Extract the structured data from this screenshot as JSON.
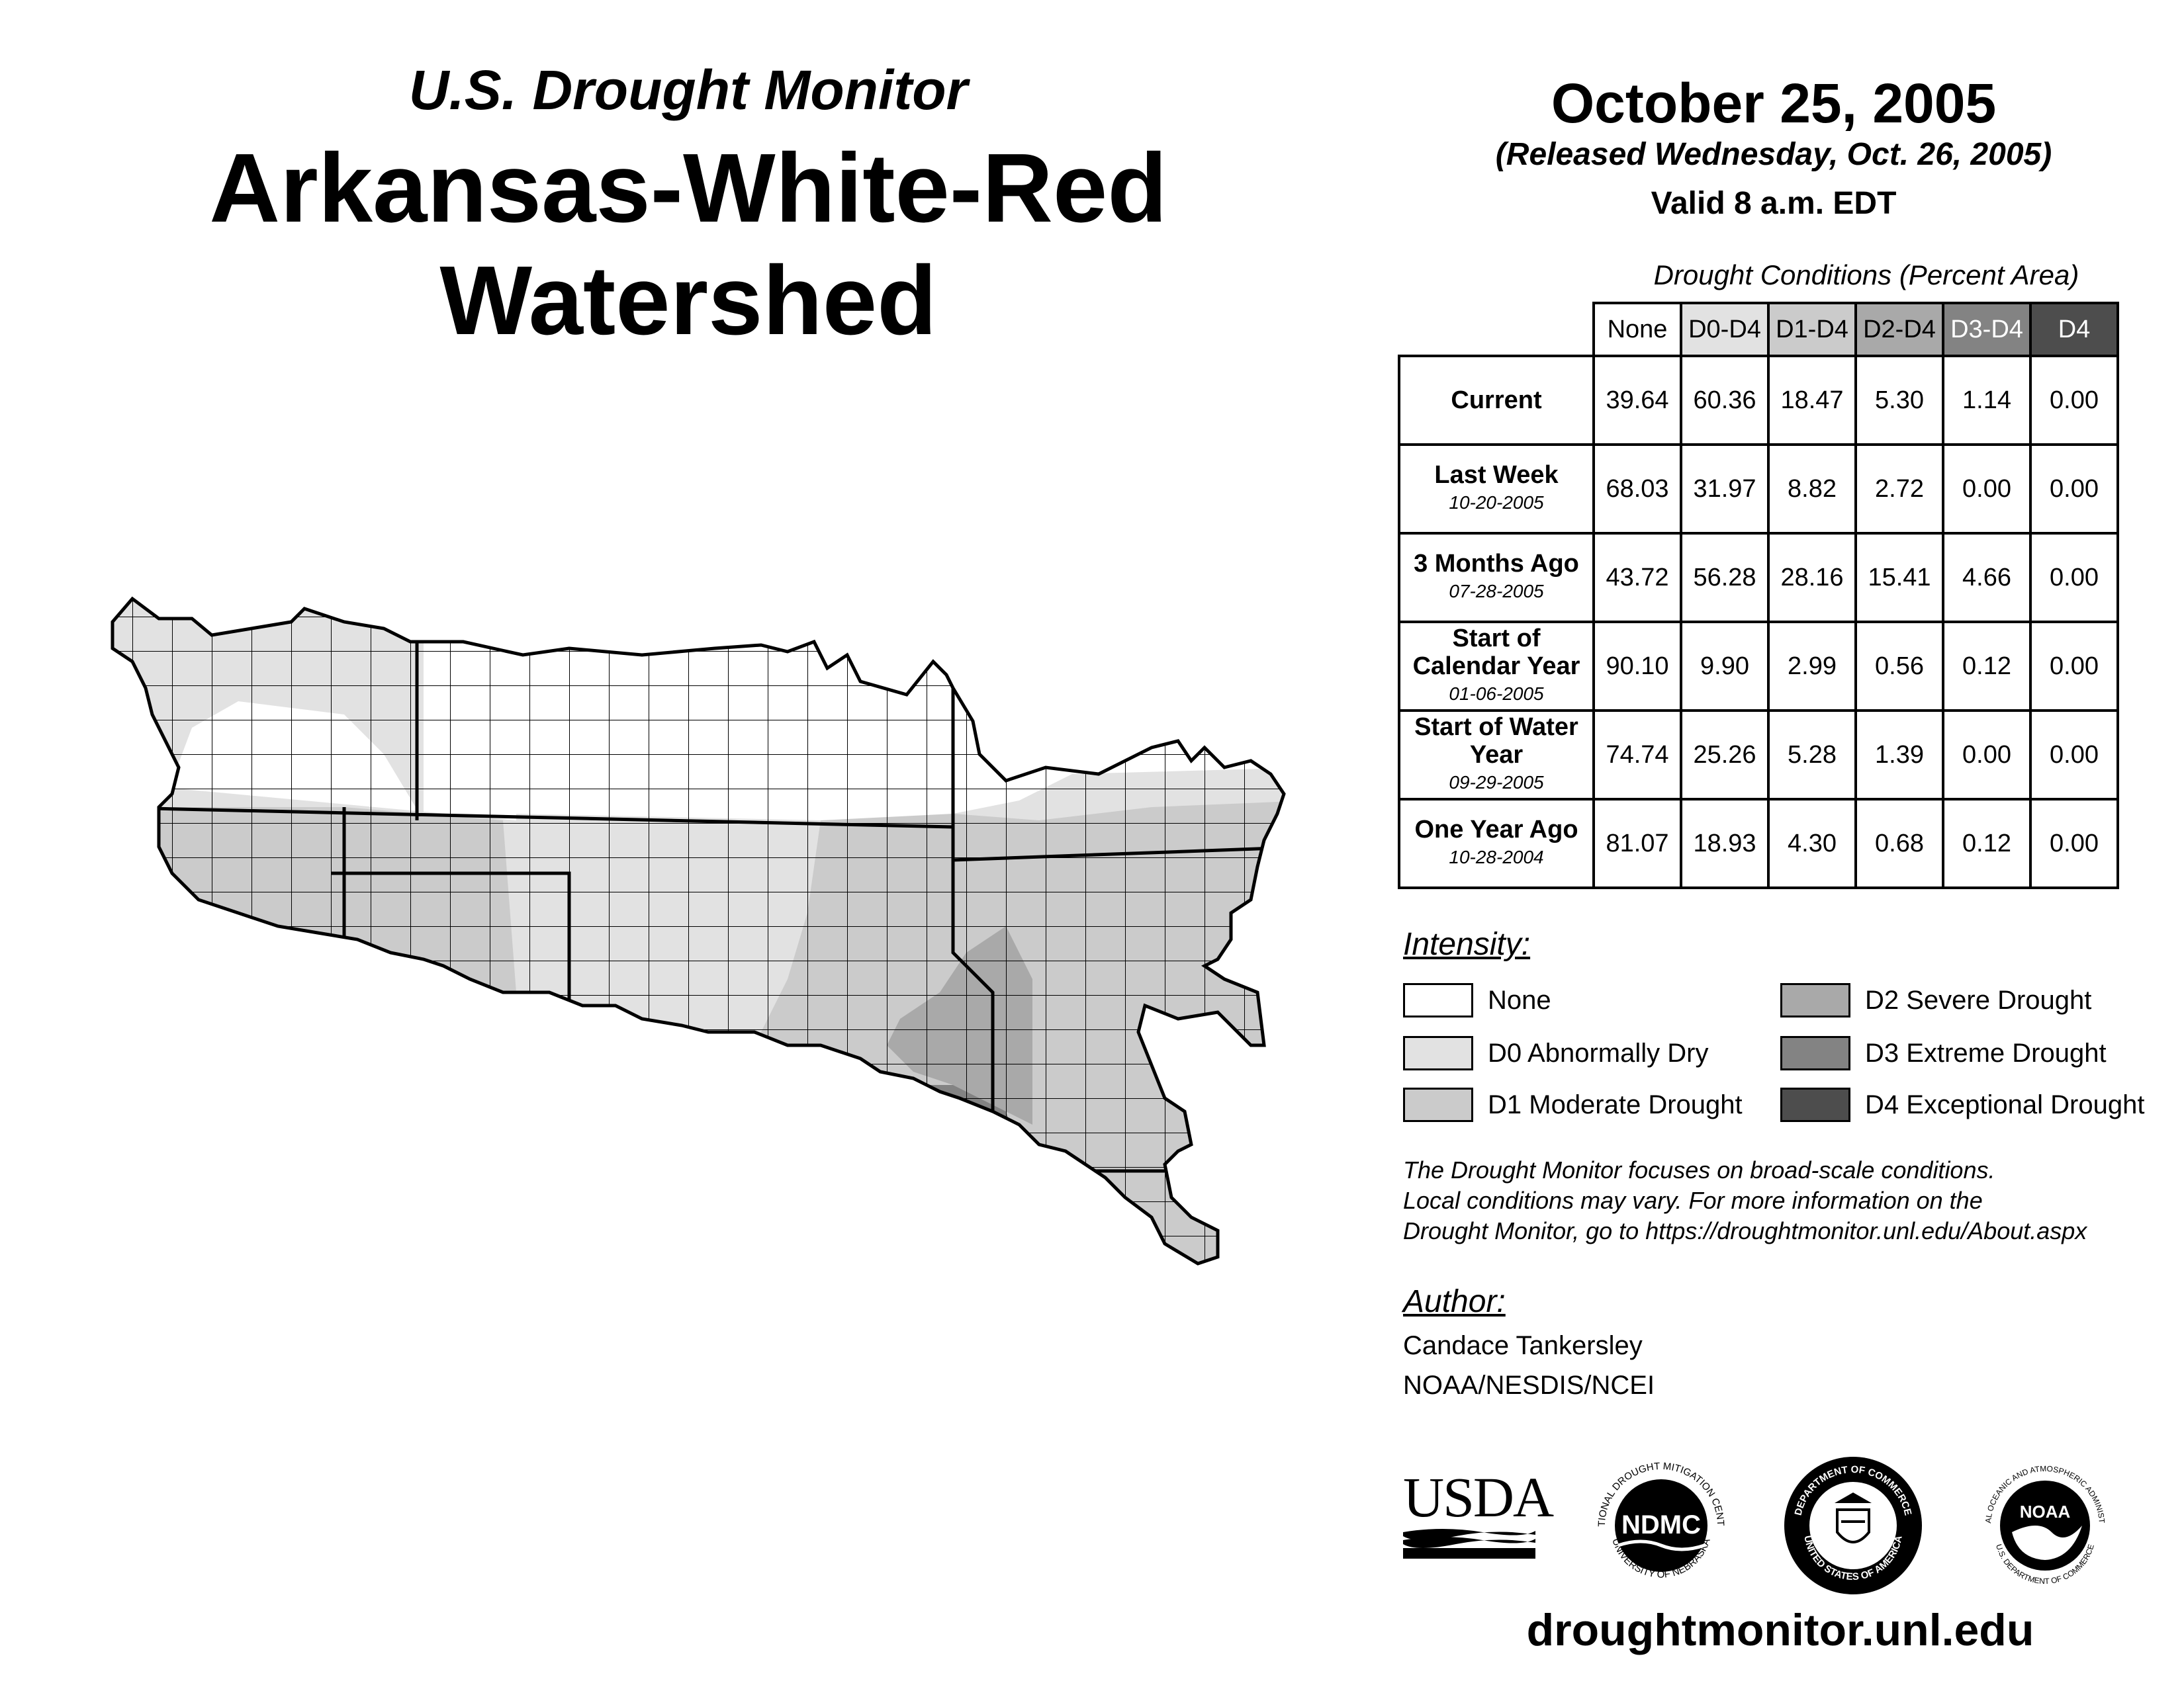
{
  "header": {
    "subtitle": "U.S. Drought Monitor",
    "title": "Arkansas-White-Red Watershed",
    "date": "October 25, 2005",
    "released": "(Released Wednesday, Oct. 26, 2005)",
    "valid": "Valid 8 a.m. EDT"
  },
  "table": {
    "caption": "Drought Conditions (Percent Area)",
    "columns": [
      "None",
      "D0-D4",
      "D1-D4",
      "D2-D4",
      "D3-D4",
      "D4"
    ],
    "rows": [
      {
        "label": "Current",
        "date": "",
        "values": [
          "39.64",
          "60.36",
          "18.47",
          "5.30",
          "1.14",
          "0.00"
        ]
      },
      {
        "label": "Last Week",
        "date": "10-20-2005",
        "values": [
          "68.03",
          "31.97",
          "8.82",
          "2.72",
          "0.00",
          "0.00"
        ]
      },
      {
        "label": "3 Months Ago",
        "date": "07-28-2005",
        "values": [
          "43.72",
          "56.28",
          "28.16",
          "15.41",
          "4.66",
          "0.00"
        ]
      },
      {
        "label": "Start of Calendar Year",
        "date": "01-06-2005",
        "values": [
          "90.10",
          "9.90",
          "2.99",
          "0.56",
          "0.12",
          "0.00"
        ]
      },
      {
        "label": "Start of Water Year",
        "date": "09-29-2005",
        "values": [
          "74.74",
          "25.26",
          "5.28",
          "1.39",
          "0.00",
          "0.00"
        ]
      },
      {
        "label": "One Year Ago",
        "date": "10-28-2004",
        "values": [
          "81.07",
          "18.93",
          "4.30",
          "0.68",
          "0.12",
          "0.00"
        ]
      }
    ]
  },
  "legend": {
    "title": "Intensity:",
    "items": [
      {
        "label": "None",
        "color": "#ffffff"
      },
      {
        "label": "D0 Abnormally Dry",
        "color": "#e2e2e2"
      },
      {
        "label": "D1 Moderate Drought",
        "color": "#cbcbcb"
      },
      {
        "label": "D2 Severe Drought",
        "color": "#a9a9a9"
      },
      {
        "label": "D3 Extreme Drought",
        "color": "#838383"
      },
      {
        "label": "D4 Exceptional Drought",
        "color": "#4d4d4d"
      }
    ]
  },
  "note": {
    "line1": "The Drought Monitor focuses on broad-scale conditions.",
    "line2": "Local conditions may vary. For more information on the",
    "line3": "Drought Monitor, go to https://droughtmonitor.unl.edu/About.aspx"
  },
  "author": {
    "label": "Author:",
    "name": "Candace Tankersley",
    "org": "NOAA/NESDIS/NCEI"
  },
  "logos": {
    "usda": "USDA",
    "ndmc": "NDMC",
    "ndmc_ring": "NATIONAL DROUGHT MITIGATION CENTER",
    "ndmc_ring_bottom": "UNIVERSITY OF NEBRASKA",
    "doc_ring": "DEPARTMENT OF COMMERCE",
    "doc_ring_bottom": "UNITED STATES OF AMERICA",
    "noaa": "NOAA",
    "noaa_ring": "NATIONAL OCEANIC AND ATMOSPHERIC ADMINISTRATION",
    "noaa_ring_bottom": "U.S. DEPARTMENT OF COMMERCE"
  },
  "footer": {
    "url": "droughtmonitor.unl.edu"
  }
}
